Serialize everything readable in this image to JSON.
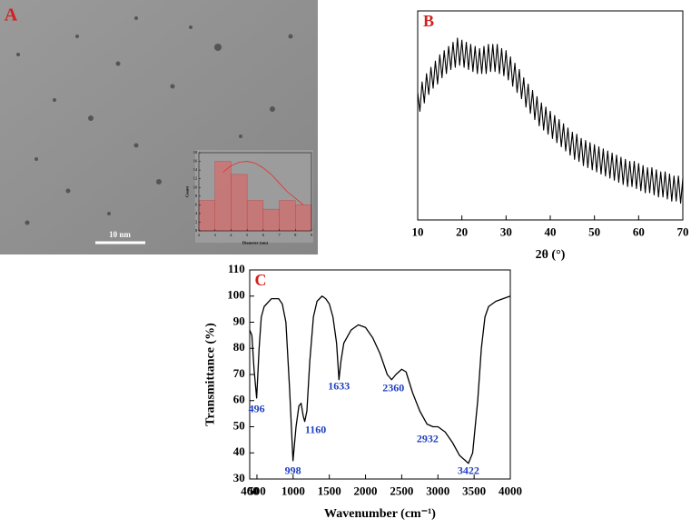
{
  "image": {
    "label": "A",
    "scale_bar": "10 nm"
  },
  "chart_data": [
    {
      "type": "histogram",
      "xlabel": "Diameter (nm)",
      "ylabel": "Count",
      "bins": [
        2,
        3,
        4,
        5,
        6,
        7,
        8,
        9
      ],
      "counts": [
        7,
        16,
        13,
        7,
        5,
        7,
        6
      ],
      "color": "#e06060",
      "xlim": [
        2,
        9
      ],
      "ylim": [
        0,
        18
      ],
      "xticks": [
        2,
        3,
        4,
        5,
        6,
        7,
        8,
        9
      ],
      "yticks": [
        0,
        2,
        4,
        6,
        8,
        10,
        12,
        14,
        16,
        18
      ],
      "fit": {
        "color": "#e03030",
        "x": [
          3.5,
          4,
          4.5,
          5,
          5.5,
          6,
          6.5,
          7,
          7.5,
          8,
          8.5
        ],
        "values": [
          13.5,
          15,
          15.8,
          16,
          15.6,
          14.5,
          13,
          11,
          9,
          7.5,
          6
        ]
      }
    },
    {
      "type": "line",
      "label": "B",
      "xlabel": "2θ (°)",
      "color": "#000000",
      "xlim": [
        10,
        70
      ],
      "ylim": [
        0,
        100
      ],
      "xticks": [
        10,
        20,
        30,
        40,
        50,
        60,
        70
      ],
      "x": [
        10,
        10.5,
        11,
        11.5,
        12,
        12.5,
        13,
        13.5,
        14,
        14.5,
        15,
        15.5,
        16,
        16.5,
        17,
        17.5,
        18,
        18.5,
        19,
        19.5,
        20,
        20.5,
        21,
        21.5,
        22,
        22.5,
        23,
        23.5,
        24,
        24.5,
        25,
        25.5,
        26,
        26.5,
        27,
        27.5,
        28,
        28.5,
        29,
        29.5,
        30,
        30.5,
        31,
        31.5,
        32,
        32.5,
        33,
        33.5,
        34,
        34.5,
        35,
        35.5,
        36,
        36.5,
        37,
        37.5,
        38,
        38.5,
        39,
        39.5,
        40,
        40.5,
        41,
        41.5,
        42,
        42.5,
        43,
        43.5,
        44,
        44.5,
        45,
        45.5,
        46,
        46.5,
        47,
        47.5,
        48,
        48.5,
        49,
        49.5,
        50,
        50.5,
        51,
        51.5,
        52,
        52.5,
        53,
        53.5,
        54,
        54.5,
        55,
        55.5,
        56,
        56.5,
        57,
        57.5,
        58,
        58.5,
        59,
        59.5,
        60,
        60.5,
        61,
        61.5,
        62,
        62.5,
        63,
        63.5,
        64,
        64.5,
        65,
        65.5,
        66,
        66.5,
        67,
        67.5,
        68,
        68.5,
        69,
        69.5,
        70
      ],
      "values": [
        61,
        52,
        66,
        56,
        70,
        60,
        73,
        63,
        76,
        65,
        79,
        68,
        81,
        70,
        83,
        72,
        85,
        73,
        87,
        74,
        86,
        73,
        85,
        72,
        84,
        71,
        83,
        70,
        82,
        70,
        83,
        70,
        84,
        71,
        84,
        71,
        84,
        70,
        82,
        69,
        81,
        67,
        78,
        64,
        75,
        61,
        72,
        58,
        68,
        54,
        65,
        51,
        62,
        48,
        59,
        45,
        56,
        43,
        54,
        41,
        52,
        39,
        50,
        37,
        48,
        35,
        46,
        33,
        44,
        31,
        42,
        29,
        41,
        28,
        39,
        26,
        38,
        25,
        37,
        24,
        36,
        23,
        35,
        22,
        34,
        21,
        33,
        20,
        32,
        19,
        31,
        18,
        30,
        17,
        29,
        16,
        28,
        16,
        28,
        15,
        27,
        14,
        26,
        13,
        25,
        13,
        25,
        12,
        24,
        11,
        23,
        11,
        23,
        10,
        22,
        9,
        21,
        9,
        21,
        8,
        20
      ]
    },
    {
      "type": "line",
      "label": "C",
      "xlabel": "Wavenumber (cm⁻¹)",
      "ylabel": "Transmittance (%)",
      "color": "#000000",
      "peak_color": "#1f3fbf",
      "xlim": [
        400,
        4000
      ],
      "ylim": [
        30,
        110
      ],
      "xticks": [
        400,
        500,
        1000,
        1500,
        2000,
        2500,
        3000,
        3500,
        4000
      ],
      "yticks": [
        30,
        40,
        50,
        60,
        70,
        80,
        90,
        100,
        110
      ],
      "x": [
        400,
        430,
        460,
        496,
        530,
        560,
        600,
        700,
        800,
        850,
        900,
        950,
        998,
        1040,
        1080,
        1110,
        1140,
        1160,
        1190,
        1230,
        1280,
        1330,
        1400,
        1450,
        1500,
        1550,
        1600,
        1633,
        1660,
        1700,
        1800,
        1900,
        2000,
        2100,
        2200,
        2300,
        2360,
        2420,
        2500,
        2560,
        2650,
        2750,
        2850,
        2932,
        3000,
        3100,
        3200,
        3300,
        3422,
        3480,
        3550,
        3600,
        3650,
        3700,
        3800,
        3900,
        4000
      ],
      "values": [
        87,
        85,
        72,
        61,
        80,
        92,
        96,
        99,
        99,
        97,
        90,
        65,
        37,
        50,
        58,
        59,
        54,
        52,
        56,
        75,
        92,
        98,
        100,
        99,
        97,
        92,
        82,
        68,
        75,
        82,
        87,
        89,
        88,
        84,
        78,
        70,
        68,
        70,
        72,
        71,
        63,
        56,
        51,
        50,
        50,
        48,
        44,
        39,
        36,
        40,
        60,
        80,
        92,
        96,
        98,
        99,
        100
      ],
      "peaks": [
        496,
        998,
        1160,
        1633,
        2360,
        2932,
        3422
      ]
    }
  ]
}
